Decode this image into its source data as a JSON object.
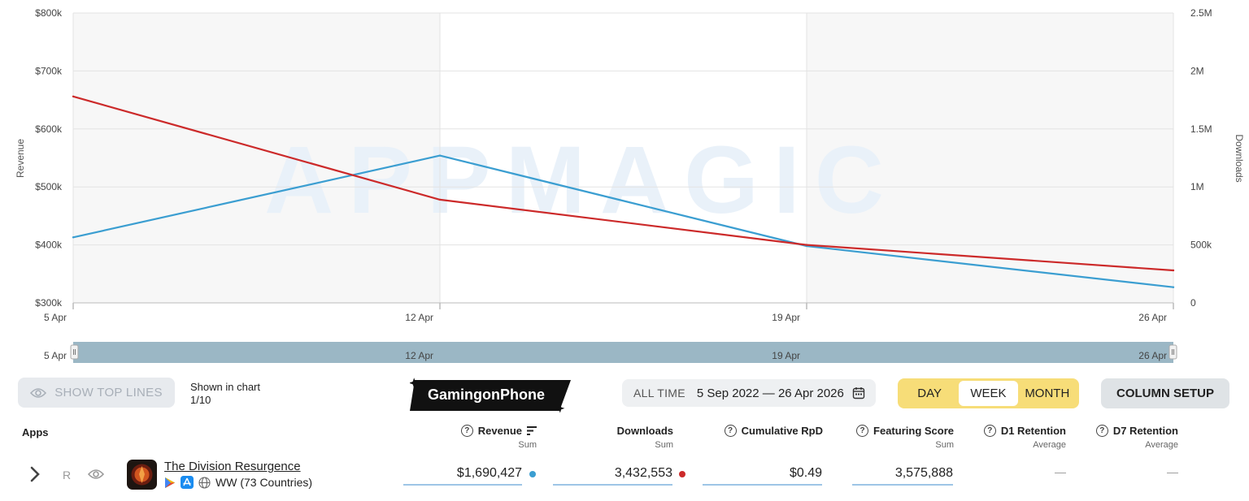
{
  "chart_data": {
    "type": "line",
    "x": [
      "5 Apr",
      "12 Apr",
      "19 Apr",
      "26 Apr"
    ],
    "series": [
      {
        "name": "Revenue",
        "axis": "left",
        "color": "#3b9ed1",
        "values": [
          413000,
          554000,
          398000,
          327000
        ]
      },
      {
        "name": "Downloads",
        "axis": "right",
        "color": "#cc2a2a",
        "values": [
          1780000,
          890000,
          500000,
          280000
        ]
      }
    ],
    "left_axis": {
      "label": "Revenue",
      "ylim": [
        300000,
        800000
      ],
      "ticks": [
        "$300k",
        "$400k",
        "$500k",
        "$600k",
        "$700k",
        "$800k"
      ]
    },
    "right_axis": {
      "label": "Downloads",
      "ylim": [
        0,
        2500000
      ],
      "ticks": [
        "0",
        "500k",
        "1M",
        "1.5M",
        "2M",
        "2.5M"
      ]
    },
    "x_ticks": [
      "5 Apr",
      "12 Apr",
      "19 Apr",
      "26 Apr"
    ],
    "navigator_ticks": [
      "5 Apr",
      "12 Apr",
      "19 Apr",
      "26 Apr"
    ],
    "watermark": "APPMAGIC",
    "grid": true
  },
  "controls": {
    "show_top_lines": "SHOW TOP LINES",
    "shown_in_chart": "Shown in chart",
    "shown_count": "1/10",
    "logo_text": "GamingonPhone",
    "range_label": "ALL TIME",
    "range_value": "5 Sep 2022 — 26 Apr 2026",
    "granularity": [
      "DAY",
      "WEEK",
      "MONTH"
    ],
    "granularity_selected": "WEEK",
    "column_setup": "COLUMN SETUP"
  },
  "table": {
    "apps_header": "Apps",
    "columns": [
      {
        "title": "Revenue",
        "sub": "Sum"
      },
      {
        "title": "Downloads",
        "sub": "Sum"
      },
      {
        "title": "Cumulative RpD",
        "sub": ""
      },
      {
        "title": "Featuring Score",
        "sub": "Sum"
      },
      {
        "title": "D1 Retention",
        "sub": "Average"
      },
      {
        "title": "D7 Retention",
        "sub": "Average"
      }
    ],
    "row": {
      "rank_label": "R",
      "name": "The Division Resurgence",
      "region": "WW (73 Countries)",
      "revenue": "$1,690,427",
      "downloads": "3,432,553",
      "rpd": "$0.49",
      "featuring": "3,575,888",
      "d1": "—",
      "d7": "—",
      "revenue_dot_color": "#3b9ed1",
      "downloads_dot_color": "#cc2a2a"
    }
  }
}
